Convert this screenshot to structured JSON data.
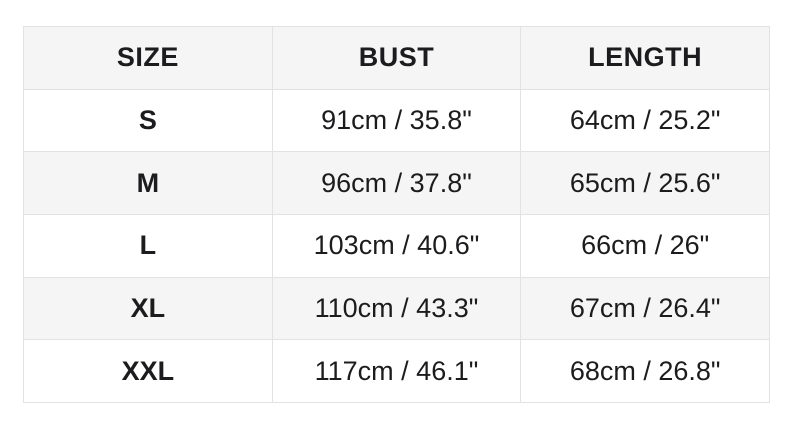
{
  "chart_data": {
    "type": "table",
    "columns": [
      "SIZE",
      "BUST",
      "LENGTH"
    ],
    "column_keys": [
      "size",
      "bust",
      "length"
    ],
    "rows": [
      [
        "S",
        "91cm / 35.8\"",
        "64cm / 25.2\""
      ],
      [
        "M",
        "96cm / 37.8\"",
        "65cm / 25.6\""
      ],
      [
        "L",
        "103cm / 40.6\"",
        "66cm / 26\""
      ],
      [
        "XL",
        "110cm / 43.3\"",
        "67cm / 26.4\""
      ],
      [
        "XXL",
        "117cm / 46.1\"",
        "68cm / 26.8\""
      ]
    ],
    "layout": {
      "header_row_shaded": true,
      "alternating_rows_shaded": [
        "M",
        "XL"
      ],
      "grid": "on"
    },
    "colors": {
      "header_bg": "#f5f5f5",
      "row_alt_bg": "#f5f5f5",
      "row_bg": "#ffffff",
      "border": "#e2e2e2",
      "text": "#1c1c1e"
    }
  }
}
